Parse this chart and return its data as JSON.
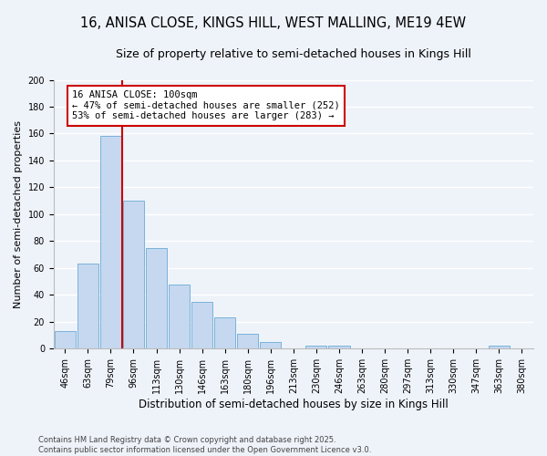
{
  "title": "16, ANISA CLOSE, KINGS HILL, WEST MALLING, ME19 4EW",
  "subtitle": "Size of property relative to semi-detached houses in Kings Hill",
  "xlabel": "Distribution of semi-detached houses by size in Kings Hill",
  "ylabel": "Number of semi-detached properties",
  "categories": [
    "46sqm",
    "63sqm",
    "79sqm",
    "96sqm",
    "113sqm",
    "130sqm",
    "146sqm",
    "163sqm",
    "180sqm",
    "196sqm",
    "213sqm",
    "230sqm",
    "246sqm",
    "263sqm",
    "280sqm",
    "297sqm",
    "313sqm",
    "330sqm",
    "347sqm",
    "363sqm",
    "380sqm"
  ],
  "values": [
    13,
    63,
    158,
    110,
    75,
    48,
    35,
    23,
    11,
    5,
    0,
    2,
    2,
    0,
    0,
    0,
    0,
    0,
    0,
    2,
    0
  ],
  "bar_color": "#c5d8f0",
  "bar_edge_color": "#6aaad4",
  "vline_color": "#cc0000",
  "vline_x": 3.0,
  "annotation_text": "16 ANISA CLOSE: 100sqm\n← 47% of semi-detached houses are smaller (252)\n53% of semi-detached houses are larger (283) →",
  "annotation_box_color": "#ffffff",
  "annotation_box_edge": "#cc0000",
  "ylim": [
    0,
    200
  ],
  "yticks": [
    0,
    20,
    40,
    60,
    80,
    100,
    120,
    140,
    160,
    180,
    200
  ],
  "footer": "Contains HM Land Registry data © Crown copyright and database right 2025.\nContains public sector information licensed under the Open Government Licence v3.0.",
  "bg_color": "#eef3fa",
  "grid_color": "#ffffff",
  "title_fontsize": 10.5,
  "subtitle_fontsize": 9,
  "tick_fontsize": 7,
  "ylabel_fontsize": 8,
  "xlabel_fontsize": 8.5,
  "annotation_fontsize": 7.5,
  "footer_fontsize": 6
}
